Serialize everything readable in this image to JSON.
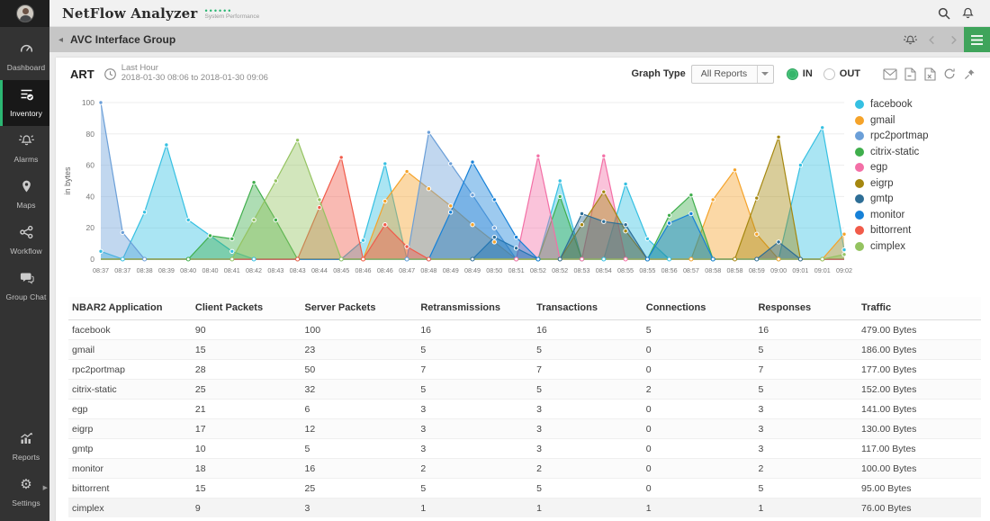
{
  "app": {
    "title": "NetFlow Analyzer",
    "dots": "••••••",
    "subtitle": "System Performance"
  },
  "header": {
    "icons": [
      "search-icon",
      "bell-icon"
    ]
  },
  "breadcrumb": {
    "title": "AVC Interface Group",
    "back_arrow": "◂"
  },
  "sidebar": {
    "items": [
      {
        "label": "Dashboard",
        "icon": "gauge-icon",
        "active": false,
        "section": "top"
      },
      {
        "label": "Inventory",
        "icon": "inventory-icon",
        "active": true,
        "section": "top"
      },
      {
        "label": "Alarms",
        "icon": "alarm-bell-icon",
        "active": false,
        "section": "top"
      },
      {
        "label": "Maps",
        "icon": "map-pin-icon",
        "active": false,
        "section": "top"
      },
      {
        "label": "Workflow",
        "icon": "workflow-icon",
        "active": false,
        "section": "top"
      },
      {
        "label": "Group Chat",
        "icon": "chat-icon",
        "active": false,
        "section": "top"
      },
      {
        "label": "Reports",
        "icon": "reports-icon",
        "active": false,
        "section": "bottom"
      },
      {
        "label": "Settings",
        "icon": "gear-icon",
        "active": false,
        "section": "bottom",
        "has_submenu": true
      }
    ],
    "accent_color": "#2bb673"
  },
  "panel": {
    "title": "ART",
    "time_label": "Last Hour",
    "time_range": "2018-01-30 08:06 to 2018-01-30 09:06",
    "graph_type_label": "Graph Type",
    "graph_type_value": "All Reports",
    "radio_in_label": "IN",
    "radio_out_label": "OUT",
    "selected_direction": "IN",
    "action_icons": [
      "email-icon",
      "pdf-icon",
      "excel-icon",
      "refresh-icon",
      "pin-icon"
    ]
  },
  "chart_data": {
    "type": "area",
    "title": "ART - Last Hour",
    "ylabel": "in bytes",
    "ylim": [
      0,
      100
    ],
    "yticks": [
      0,
      20,
      40,
      60,
      80,
      100
    ],
    "grid": true,
    "legend_position": "right",
    "x": [
      "08:37",
      "08:37",
      "08:38",
      "08:39",
      "08:40",
      "08:40",
      "08:41",
      "08:42",
      "08:43",
      "08:43",
      "08:44",
      "08:45",
      "08:46",
      "08:46",
      "08:47",
      "08:48",
      "08:49",
      "08:49",
      "08:50",
      "08:51",
      "08:52",
      "08:52",
      "08:53",
      "08:54",
      "08:55",
      "08:55",
      "08:56",
      "08:57",
      "08:58",
      "08:58",
      "08:59",
      "09:00",
      "09:01",
      "09:01",
      "09:02"
    ],
    "series": [
      {
        "name": "facebook",
        "color": "#35c0e2",
        "values": [
          5,
          0,
          30,
          73,
          25,
          15,
          5,
          0,
          0,
          0,
          0,
          0,
          12,
          61,
          0,
          0,
          0,
          0,
          0,
          0,
          0,
          50,
          0,
          0,
          48,
          13,
          0,
          0,
          0,
          0,
          0,
          0,
          60,
          84,
          6
        ]
      },
      {
        "name": "gmail",
        "color": "#f5a32a",
        "values": [
          0,
          0,
          0,
          0,
          0,
          0,
          0,
          0,
          0,
          0,
          0,
          0,
          0,
          37,
          56,
          45,
          34,
          22,
          11,
          0,
          0,
          0,
          0,
          0,
          0,
          0,
          0,
          0,
          38,
          57,
          16,
          0,
          0,
          0,
          16
        ]
      },
      {
        "name": "rpc2portmap",
        "color": "#6b9fd8",
        "values": [
          100,
          17,
          0,
          0,
          0,
          0,
          0,
          0,
          0,
          0,
          0,
          0,
          0,
          0,
          0,
          81,
          61,
          41,
          20,
          0,
          0,
          0,
          0,
          0,
          0,
          0,
          0,
          0,
          0,
          0,
          0,
          0,
          0,
          0,
          0
        ]
      },
      {
        "name": "citrix-static",
        "color": "#3fae4c",
        "values": [
          0,
          0,
          0,
          0,
          0,
          15,
          13,
          49,
          25,
          0,
          0,
          0,
          0,
          0,
          0,
          0,
          0,
          0,
          0,
          0,
          0,
          40,
          0,
          0,
          0,
          0,
          28,
          41,
          0,
          0,
          0,
          0,
          0,
          0,
          0
        ]
      },
      {
        "name": "egp",
        "color": "#f36fa6",
        "values": [
          0,
          0,
          0,
          0,
          0,
          0,
          0,
          0,
          0,
          0,
          0,
          0,
          0,
          0,
          0,
          0,
          0,
          0,
          0,
          0,
          66,
          0,
          0,
          66,
          0,
          0,
          0,
          0,
          0,
          0,
          0,
          0,
          0,
          0,
          0
        ]
      },
      {
        "name": "eigrp",
        "color": "#a5870f",
        "values": [
          0,
          0,
          0,
          0,
          0,
          0,
          0,
          0,
          0,
          0,
          0,
          0,
          0,
          0,
          0,
          0,
          0,
          0,
          0,
          0,
          0,
          0,
          22,
          43,
          18,
          0,
          0,
          0,
          0,
          0,
          39,
          78,
          0,
          0,
          0
        ]
      },
      {
        "name": "gmtp",
        "color": "#2e6e96",
        "values": [
          0,
          0,
          0,
          0,
          0,
          0,
          0,
          0,
          0,
          0,
          0,
          0,
          0,
          0,
          0,
          0,
          0,
          0,
          14,
          7,
          0,
          0,
          29,
          24,
          22,
          0,
          0,
          0,
          0,
          0,
          0,
          11,
          0,
          0,
          0
        ]
      },
      {
        "name": "monitor",
        "color": "#1681d8",
        "values": [
          0,
          0,
          0,
          0,
          0,
          0,
          0,
          0,
          0,
          0,
          0,
          0,
          0,
          0,
          0,
          0,
          30,
          62,
          38,
          14,
          0,
          0,
          0,
          0,
          0,
          0,
          23,
          29,
          0,
          0,
          0,
          0,
          0,
          0,
          0
        ]
      },
      {
        "name": "bittorrent",
        "color": "#f15b4a",
        "values": [
          0,
          0,
          0,
          0,
          0,
          0,
          0,
          0,
          0,
          0,
          33,
          65,
          0,
          22,
          8,
          0,
          0,
          0,
          0,
          0,
          0,
          0,
          0,
          0,
          0,
          0,
          0,
          0,
          0,
          0,
          0,
          0,
          0,
          0,
          0
        ]
      },
      {
        "name": "cimplex",
        "color": "#94c360",
        "values": [
          0,
          0,
          0,
          0,
          0,
          0,
          0,
          25,
          50,
          76,
          38,
          0,
          0,
          0,
          0,
          0,
          0,
          0,
          0,
          0,
          0,
          0,
          0,
          0,
          0,
          0,
          0,
          0,
          0,
          0,
          0,
          0,
          0,
          0,
          3
        ]
      }
    ]
  },
  "table": {
    "columns": [
      "NBAR2 Application",
      "Client Packets",
      "Server Packets",
      "Retransmissions",
      "Transactions",
      "Connections",
      "Responses",
      "Traffic"
    ],
    "rows": [
      [
        "facebook",
        "90",
        "100",
        "16",
        "16",
        "5",
        "16",
        "479.00 Bytes"
      ],
      [
        "gmail",
        "15",
        "23",
        "5",
        "5",
        "0",
        "5",
        "186.00 Bytes"
      ],
      [
        "rpc2portmap",
        "28",
        "50",
        "7",
        "7",
        "0",
        "7",
        "177.00 Bytes"
      ],
      [
        "citrix-static",
        "25",
        "32",
        "5",
        "5",
        "2",
        "5",
        "152.00 Bytes"
      ],
      [
        "egp",
        "21",
        "6",
        "3",
        "3",
        "0",
        "3",
        "141.00 Bytes"
      ],
      [
        "eigrp",
        "17",
        "12",
        "3",
        "3",
        "0",
        "3",
        "130.00 Bytes"
      ],
      [
        "gmtp",
        "10",
        "5",
        "3",
        "3",
        "0",
        "3",
        "117.00 Bytes"
      ],
      [
        "monitor",
        "18",
        "16",
        "2",
        "2",
        "0",
        "2",
        "100.00 Bytes"
      ],
      [
        "bittorrent",
        "15",
        "25",
        "5",
        "5",
        "0",
        "5",
        "95.00 Bytes"
      ],
      [
        "cimplex",
        "9",
        "3",
        "1",
        "1",
        "1",
        "1",
        "76.00 Bytes"
      ]
    ]
  }
}
